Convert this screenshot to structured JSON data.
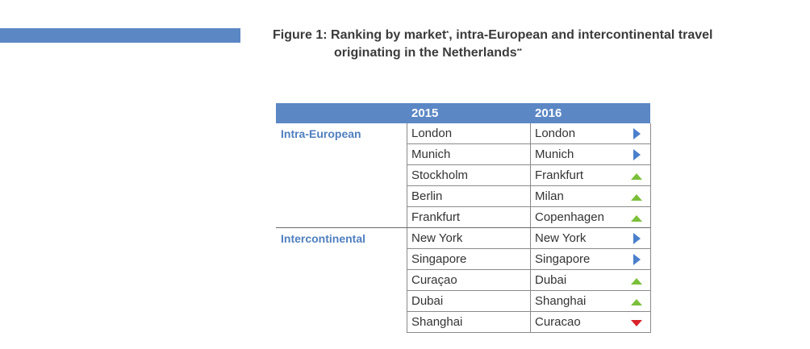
{
  "figure": {
    "title_line1": "Figure 1: Ranking by market",
    "title_mark1": "*",
    "title_line1_rest": ", intra-European and intercontinental travel",
    "title_line2": "originating in the Netherlands",
    "title_mark2": "**"
  },
  "table": {
    "headers": [
      "2015",
      "2016"
    ],
    "groups": [
      {
        "label": "Intra-European",
        "rows": [
          {
            "y2015": "London",
            "y2016": "London",
            "trend": "same"
          },
          {
            "y2015": "Munich",
            "y2016": "Munich",
            "trend": "same"
          },
          {
            "y2015": "Stockholm",
            "y2016": "Frankfurt",
            "trend": "up"
          },
          {
            "y2015": "Berlin",
            "y2016": "Milan",
            "trend": "up"
          },
          {
            "y2015": "Frankfurt",
            "y2016": "Copenhagen",
            "trend": "up"
          }
        ]
      },
      {
        "label": "Intercontinental",
        "rows": [
          {
            "y2015": "New York",
            "y2016": "New York",
            "trend": "same"
          },
          {
            "y2015": "Singapore",
            "y2016": "Singapore",
            "trend": "same"
          },
          {
            "y2015": "Curaçao",
            "y2016": "Dubai",
            "trend": "up"
          },
          {
            "y2015": "Dubai",
            "y2016": "Shanghai",
            "trend": "up"
          },
          {
            "y2015": "Shanghai",
            "y2016": "Curacao",
            "trend": "down"
          }
        ]
      }
    ]
  },
  "colors": {
    "header_bg": "#5b87c5",
    "group_label": "#4f7fbf",
    "trend_same": "#4a7fcc",
    "trend_up": "#7bbf3a",
    "trend_down": "#d9232a"
  }
}
